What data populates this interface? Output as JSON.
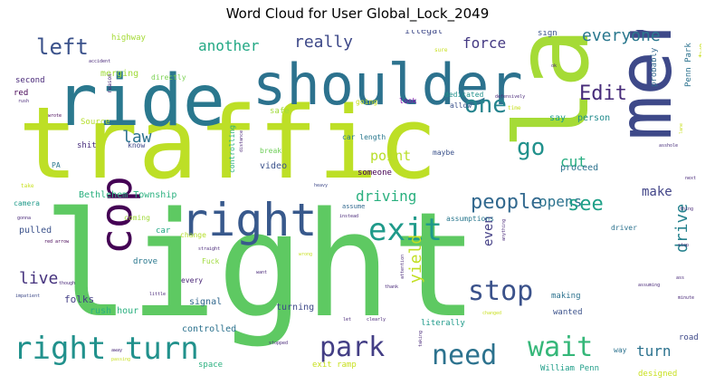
{
  "title": "Word Cloud for User Global_Lock_2049",
  "words": [
    {
      "t": "light",
      "c": "#5ec962"
    },
    {
      "t": "traffic",
      "c": "#bddf26"
    },
    {
      "t": "lane",
      "c": "#a5db36"
    },
    {
      "t": "merge",
      "c": "#3e4989"
    },
    {
      "t": "ride",
      "c": "#2a788e"
    },
    {
      "t": "shoulder",
      "c": "#2c728e"
    },
    {
      "t": "right",
      "c": "#38598c"
    },
    {
      "t": "cop",
      "c": "#440154"
    },
    {
      "t": "right turn",
      "c": "#21918c"
    },
    {
      "t": "exit",
      "c": "#1f9a8a"
    },
    {
      "t": "park",
      "c": "#433e85"
    },
    {
      "t": "stop",
      "c": "#3b528b"
    },
    {
      "t": "wait",
      "c": "#35b779"
    },
    {
      "t": "need",
      "c": "#2c728e"
    },
    {
      "t": "people",
      "c": "#31688e"
    },
    {
      "t": "left",
      "c": "#3b528b"
    },
    {
      "t": "another",
      "c": "#22a884"
    },
    {
      "t": "really",
      "c": "#3e4989"
    },
    {
      "t": "force",
      "c": "#443983"
    },
    {
      "t": "everyone",
      "c": "#2a788e"
    },
    {
      "t": "Edit",
      "c": "#472c7a"
    },
    {
      "t": "one",
      "c": "#25848e"
    },
    {
      "t": "go",
      "c": "#21918c"
    },
    {
      "t": "law",
      "c": "#2c728e"
    },
    {
      "t": "point",
      "c": "#b8de29"
    },
    {
      "t": "cut",
      "c": "#26ad81"
    },
    {
      "t": "driving",
      "c": "#2ab07f"
    },
    {
      "t": "opens",
      "c": "#2c728e"
    },
    {
      "t": "see",
      "c": "#1fa088"
    },
    {
      "t": "make",
      "c": "#414487"
    },
    {
      "t": "live",
      "c": "#46337e"
    },
    {
      "t": "even",
      "c": "#433e85"
    },
    {
      "t": "yield",
      "c": "#c2df23"
    },
    {
      "t": "drive",
      "c": "#26828e"
    },
    {
      "t": "turn",
      "c": "#2c728e"
    },
    {
      "t": "Bethlehem Township",
      "c": "#2ab07f"
    },
    {
      "t": "highway",
      "c": "#a5db36"
    },
    {
      "t": "illegal",
      "c": "#3e4989"
    },
    {
      "t": "sign",
      "c": "#3b528b"
    },
    {
      "t": "merging",
      "c": "#a0da39"
    },
    {
      "t": "directly",
      "c": "#7ad151"
    },
    {
      "t": "second",
      "c": "#482878"
    },
    {
      "t": "red",
      "c": "#440154"
    },
    {
      "t": "Source",
      "c": "#b5de2b"
    },
    {
      "t": "safe",
      "c": "#a0da39"
    },
    {
      "t": "going",
      "c": "#c8e020"
    },
    {
      "t": "look",
      "c": "#7e03a8"
    },
    {
      "t": "dedicated",
      "c": "#21918c"
    },
    {
      "t": "allow",
      "c": "#3b528b"
    },
    {
      "t": "say",
      "c": "#1f9e89"
    },
    {
      "t": "person",
      "c": "#228c8d"
    },
    {
      "t": "probably",
      "c": "#31688e"
    },
    {
      "t": "Penn Park",
      "c": "#2c728e"
    },
    {
      "t": "shit",
      "c": "#472d7b"
    },
    {
      "t": "know",
      "c": "#3e4989"
    },
    {
      "t": "car length",
      "c": "#2a788e"
    },
    {
      "t": "maybe",
      "c": "#3b528b"
    },
    {
      "t": "proceed",
      "c": "#2c728e"
    },
    {
      "t": "PA",
      "c": "#2a788e"
    },
    {
      "t": "break",
      "c": "#6ece58"
    },
    {
      "t": "video",
      "c": "#3b528b"
    },
    {
      "t": "someone",
      "c": "#440154"
    },
    {
      "t": "controlling",
      "c": "#2ab07f"
    },
    {
      "t": "camera",
      "c": "#1f9a8a"
    },
    {
      "t": "assume",
      "c": "#31688e"
    },
    {
      "t": "assumptions",
      "c": "#2a788e"
    },
    {
      "t": "car",
      "c": "#22a884"
    },
    {
      "t": "coming",
      "c": "#a0da39"
    },
    {
      "t": "change",
      "c": "#b5de2b"
    },
    {
      "t": "pulled",
      "c": "#3b528b"
    },
    {
      "t": "driver",
      "c": "#2c728e"
    },
    {
      "t": "Fuck",
      "c": "#9fda3a"
    },
    {
      "t": "drove",
      "c": "#2a788e"
    },
    {
      "t": "folks",
      "c": "#433e85"
    },
    {
      "t": "every",
      "c": "#482475"
    },
    {
      "t": "signal",
      "c": "#31688e"
    },
    {
      "t": "making",
      "c": "#2c728e"
    },
    {
      "t": "wanted",
      "c": "#3b528b"
    },
    {
      "t": "rush hour",
      "c": "#2ab07f"
    },
    {
      "t": "controlled",
      "c": "#2c728e"
    },
    {
      "t": "turning",
      "c": "#3e4989"
    },
    {
      "t": "literally",
      "c": "#1f9a8a"
    },
    {
      "t": "road",
      "c": "#3e4989"
    },
    {
      "t": "way",
      "c": "#2c728e"
    },
    {
      "t": "William Penn",
      "c": "#1f9e89"
    },
    {
      "t": "space",
      "c": "#2ab07f"
    },
    {
      "t": "exit ramp",
      "c": "#c8e020"
    },
    {
      "t": "designed",
      "c": "#c8e020"
    },
    {
      "t": "two",
      "c": "#c8e020"
    },
    {
      "t": "accident",
      "c": "#482878"
    },
    {
      "t": "reason",
      "c": "#482878"
    },
    {
      "t": "rush",
      "c": "#482878"
    },
    {
      "t": "wrote",
      "c": "#440154"
    },
    {
      "t": "asshole",
      "c": "#472d7b"
    },
    {
      "t": "distance",
      "c": "#482475"
    },
    {
      "t": "heavy",
      "c": "#3e4989"
    },
    {
      "t": "take",
      "c": "#c8e020"
    },
    {
      "t": "gonna",
      "c": "#482878"
    },
    {
      "t": "red arrow",
      "c": "#440154"
    },
    {
      "t": "though",
      "c": "#482878"
    },
    {
      "t": "impatient",
      "c": "#3e4989"
    },
    {
      "t": "straight",
      "c": "#482878"
    },
    {
      "t": "wrong",
      "c": "#c8e020"
    },
    {
      "t": "little",
      "c": "#482878"
    },
    {
      "t": "away",
      "c": "#482878"
    },
    {
      "t": "passing",
      "c": "#c8e020"
    },
    {
      "t": "stopped",
      "c": "#482878"
    },
    {
      "t": "want",
      "c": "#482878"
    },
    {
      "t": "attention",
      "c": "#482878"
    },
    {
      "t": "clearly",
      "c": "#482878"
    },
    {
      "t": "taking",
      "c": "#482878"
    },
    {
      "t": "changed",
      "c": "#c8e020"
    },
    {
      "t": "thank",
      "c": "#482878"
    },
    {
      "t": "instead",
      "c": "#482878"
    },
    {
      "t": "time",
      "c": "#c8e020"
    },
    {
      "t": "defensively",
      "c": "#482878"
    },
    {
      "t": "sure",
      "c": "#c8e020"
    },
    {
      "t": "thing",
      "c": "#482878"
    },
    {
      "t": "next",
      "c": "#482878"
    },
    {
      "t": "assuming",
      "c": "#482878"
    },
    {
      "t": "minute",
      "c": "#482878"
    },
    {
      "t": "ass",
      "c": "#482878"
    },
    {
      "t": "let",
      "c": "#482878"
    },
    {
      "t": "anything",
      "c": "#482878"
    },
    {
      "t": "ok",
      "c": "#482878"
    },
    {
      "t": "lane",
      "c": "#c8e020"
    },
    {
      "t": "stop",
      "c": "#482878"
    }
  ]
}
